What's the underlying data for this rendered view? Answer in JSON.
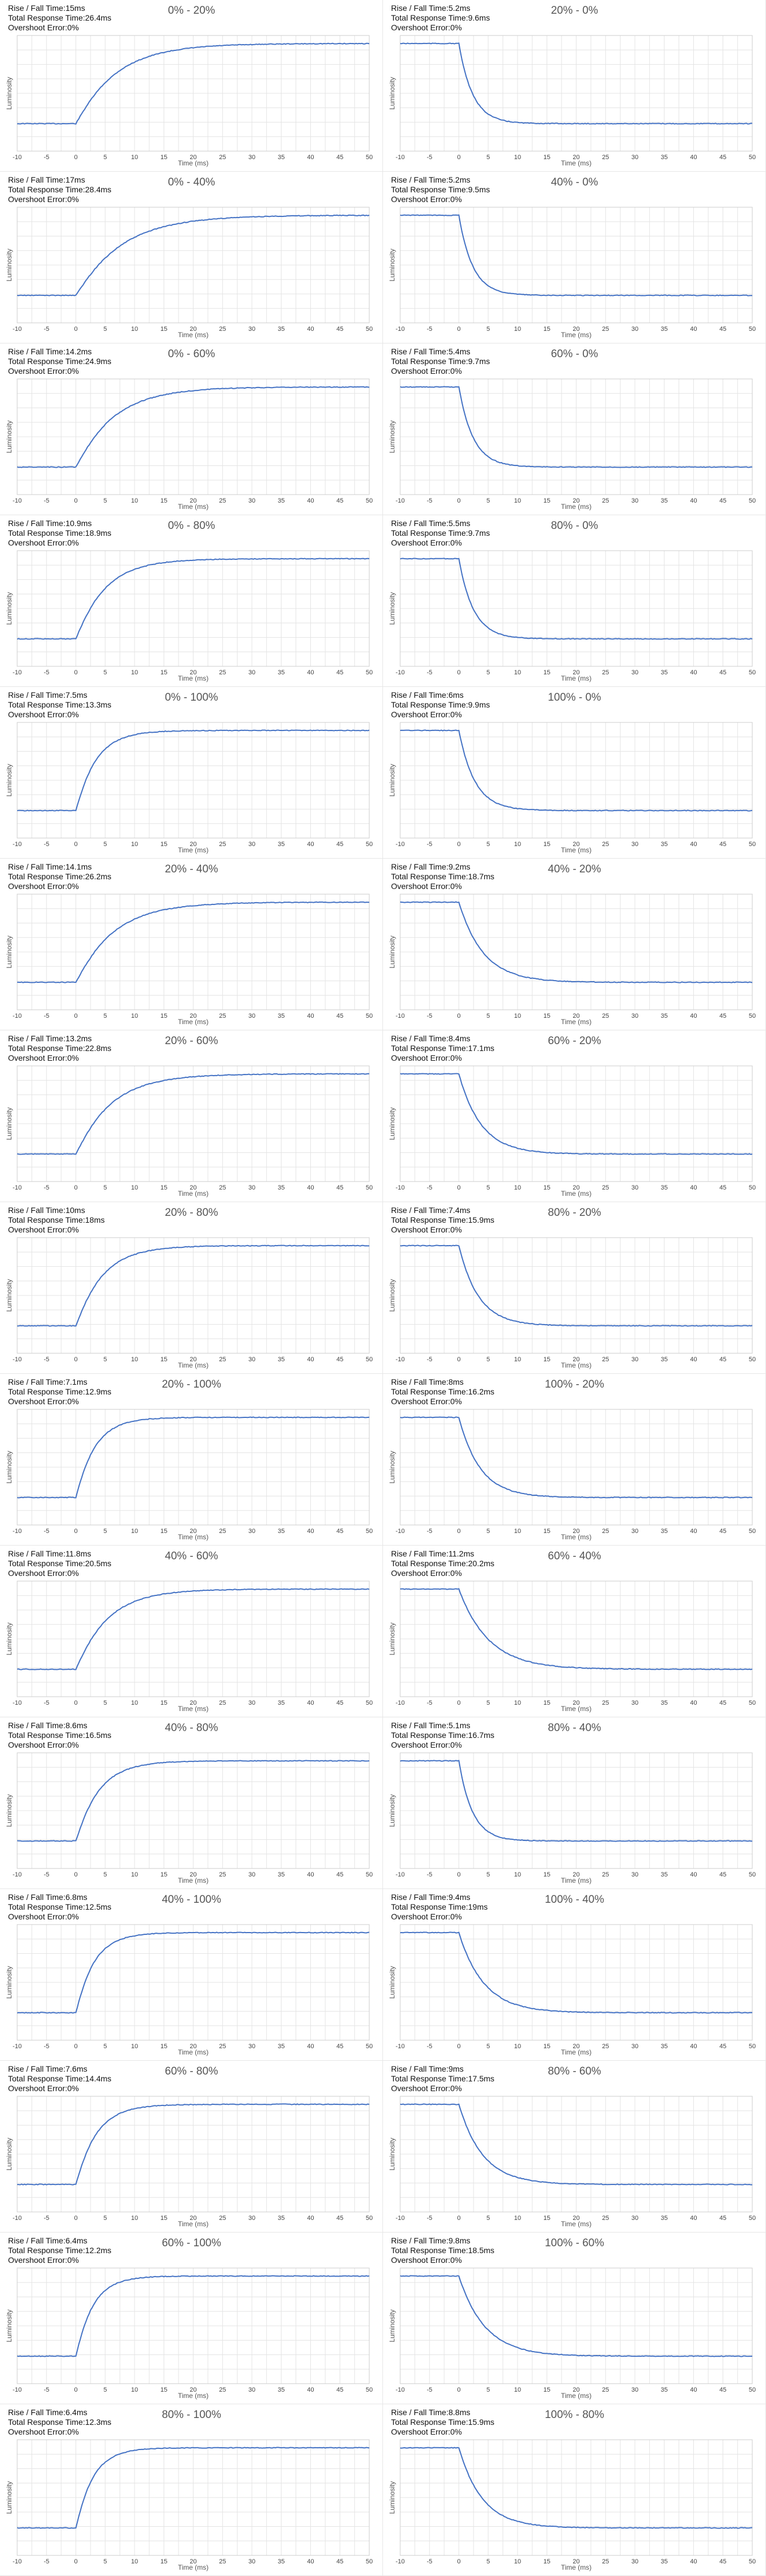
{
  "labels": {
    "rise_fall": "Rise / Fall Time:",
    "total": "Total Response Time:",
    "overshoot": "Overshoot Error:"
  },
  "chart_data": [
    {
      "type": "line",
      "title": "0% - 20%",
      "direction": "rise",
      "start": 0,
      "end": 20,
      "rise_fall": "15ms",
      "total": "26.4ms",
      "overshoot": "0%",
      "xlabel": "Time (ms)",
      "ylabel": "Luminosity",
      "xlim": [
        -10,
        50
      ],
      "xticks": [
        -10,
        -5,
        0,
        5,
        10,
        15,
        20,
        25,
        30,
        35,
        40,
        45,
        50
      ],
      "grid": true
    },
    {
      "type": "line",
      "title": "20% - 0%",
      "direction": "fall",
      "start": 20,
      "end": 0,
      "rise_fall": "5.2ms",
      "total": "9.6ms",
      "overshoot": "0%",
      "xlabel": "Time (ms)",
      "ylabel": "Luminosity",
      "xlim": [
        -10,
        50
      ],
      "xticks": [
        -10,
        -5,
        0,
        5,
        10,
        15,
        20,
        25,
        30,
        35,
        40,
        45,
        50
      ],
      "grid": true
    },
    {
      "type": "line",
      "title": "0% - 40%",
      "direction": "rise",
      "start": 0,
      "end": 40,
      "rise_fall": "17ms",
      "total": "28.4ms",
      "overshoot": "0%",
      "xlabel": "Time (ms)",
      "ylabel": "Luminosity",
      "xlim": [
        -10,
        50
      ],
      "xticks": [
        -10,
        -5,
        0,
        5,
        10,
        15,
        20,
        25,
        30,
        35,
        40,
        45,
        50
      ],
      "grid": true
    },
    {
      "type": "line",
      "title": "40% - 0%",
      "direction": "fall",
      "start": 40,
      "end": 0,
      "rise_fall": "5.2ms",
      "total": "9.5ms",
      "overshoot": "0%",
      "xlabel": "Time (ms)",
      "ylabel": "Luminosity",
      "xlim": [
        -10,
        50
      ],
      "xticks": [
        -10,
        -5,
        0,
        5,
        10,
        15,
        20,
        25,
        30,
        35,
        40,
        45,
        50
      ],
      "grid": true
    },
    {
      "type": "line",
      "title": "0% - 60%",
      "direction": "rise",
      "start": 0,
      "end": 60,
      "rise_fall": "14.2ms",
      "total": "24.9ms",
      "overshoot": "0%",
      "xlabel": "Time (ms)",
      "ylabel": "Luminosity",
      "xlim": [
        -10,
        50
      ],
      "xticks": [
        -10,
        -5,
        0,
        5,
        10,
        15,
        20,
        25,
        30,
        35,
        40,
        45,
        50
      ],
      "grid": true
    },
    {
      "type": "line",
      "title": "60% - 0%",
      "direction": "fall",
      "start": 60,
      "end": 0,
      "rise_fall": "5.4ms",
      "total": "9.7ms",
      "overshoot": "0%",
      "xlabel": "Time (ms)",
      "ylabel": "Luminosity",
      "xlim": [
        -10,
        50
      ],
      "xticks": [
        -10,
        -5,
        0,
        5,
        10,
        15,
        20,
        25,
        30,
        35,
        40,
        45,
        50
      ],
      "grid": true
    },
    {
      "type": "line",
      "title": "0% - 80%",
      "direction": "rise",
      "start": 0,
      "end": 80,
      "rise_fall": "10.9ms",
      "total": "18.9ms",
      "overshoot": "0%",
      "xlabel": "Time (ms)",
      "ylabel": "Luminosity",
      "xlim": [
        -10,
        50
      ],
      "xticks": [
        -10,
        -5,
        0,
        5,
        10,
        15,
        20,
        25,
        30,
        35,
        40,
        45,
        50
      ],
      "grid": true
    },
    {
      "type": "line",
      "title": "80% - 0%",
      "direction": "fall",
      "start": 80,
      "end": 0,
      "rise_fall": "5.5ms",
      "total": "9.7ms",
      "overshoot": "0%",
      "xlabel": "Time (ms)",
      "ylabel": "Luminosity",
      "xlim": [
        -10,
        50
      ],
      "xticks": [
        -10,
        -5,
        0,
        5,
        10,
        15,
        20,
        25,
        30,
        35,
        40,
        45,
        50
      ],
      "grid": true
    },
    {
      "type": "line",
      "title": "0% - 100%",
      "direction": "rise",
      "start": 0,
      "end": 100,
      "rise_fall": "7.5ms",
      "total": "13.3ms",
      "overshoot": "0%",
      "xlabel": "Time (ms)",
      "ylabel": "Luminosity",
      "xlim": [
        -10,
        50
      ],
      "xticks": [
        -10,
        -5,
        0,
        5,
        10,
        15,
        20,
        25,
        30,
        35,
        40,
        45,
        50
      ],
      "grid": true
    },
    {
      "type": "line",
      "title": "100% - 0%",
      "direction": "fall",
      "start": 100,
      "end": 0,
      "rise_fall": "6ms",
      "total": "9.9ms",
      "overshoot": "0%",
      "xlabel": "Time (ms)",
      "ylabel": "Luminosity",
      "xlim": [
        -10,
        50
      ],
      "xticks": [
        -10,
        -5,
        0,
        5,
        10,
        15,
        20,
        25,
        30,
        35,
        40,
        45,
        50
      ],
      "grid": true
    },
    {
      "type": "line",
      "title": "20% - 40%",
      "direction": "rise",
      "start": 20,
      "end": 40,
      "rise_fall": "14.1ms",
      "total": "26.2ms",
      "overshoot": "0%",
      "xlabel": "Time (ms)",
      "ylabel": "Luminosity",
      "xlim": [
        -10,
        50
      ],
      "xticks": [
        -10,
        -5,
        0,
        5,
        10,
        15,
        20,
        25,
        30,
        35,
        40,
        45,
        50
      ],
      "grid": true
    },
    {
      "type": "line",
      "title": "40% - 20%",
      "direction": "fall",
      "start": 40,
      "end": 20,
      "rise_fall": "9.2ms",
      "total": "18.7ms",
      "overshoot": "0%",
      "xlabel": "Time (ms)",
      "ylabel": "Luminosity",
      "xlim": [
        -10,
        50
      ],
      "xticks": [
        -10,
        -5,
        0,
        5,
        10,
        15,
        20,
        25,
        30,
        35,
        40,
        45,
        50
      ],
      "grid": true
    },
    {
      "type": "line",
      "title": "20% - 60%",
      "direction": "rise",
      "start": 20,
      "end": 60,
      "rise_fall": "13.2ms",
      "total": "22.8ms",
      "overshoot": "0%",
      "xlabel": "Time (ms)",
      "ylabel": "Luminosity",
      "xlim": [
        -10,
        50
      ],
      "xticks": [
        -10,
        -5,
        0,
        5,
        10,
        15,
        20,
        25,
        30,
        35,
        40,
        45,
        50
      ],
      "grid": true
    },
    {
      "type": "line",
      "title": "60% - 20%",
      "direction": "fall",
      "start": 60,
      "end": 20,
      "rise_fall": "8.4ms",
      "total": "17.1ms",
      "overshoot": "0%",
      "xlabel": "Time (ms)",
      "ylabel": "Luminosity",
      "xlim": [
        -10,
        50
      ],
      "xticks": [
        -10,
        -5,
        0,
        5,
        10,
        15,
        20,
        25,
        30,
        35,
        40,
        45,
        50
      ],
      "grid": true
    },
    {
      "type": "line",
      "title": "20% - 80%",
      "direction": "rise",
      "start": 20,
      "end": 80,
      "rise_fall": "10ms",
      "total": "18ms",
      "overshoot": "0%",
      "xlabel": "Time (ms)",
      "ylabel": "Luminosity",
      "xlim": [
        -10,
        50
      ],
      "xticks": [
        -10,
        -5,
        0,
        5,
        10,
        15,
        20,
        25,
        30,
        35,
        40,
        45,
        50
      ],
      "grid": true
    },
    {
      "type": "line",
      "title": "80% - 20%",
      "direction": "fall",
      "start": 80,
      "end": 20,
      "rise_fall": "7.4ms",
      "total": "15.9ms",
      "overshoot": "0%",
      "xlabel": "Time (ms)",
      "ylabel": "Luminosity",
      "xlim": [
        -10,
        50
      ],
      "xticks": [
        -10,
        -5,
        0,
        5,
        10,
        15,
        20,
        25,
        30,
        35,
        40,
        45,
        50
      ],
      "grid": true
    },
    {
      "type": "line",
      "title": "20% - 100%",
      "direction": "rise",
      "start": 20,
      "end": 100,
      "rise_fall": "7.1ms",
      "total": "12.9ms",
      "overshoot": "0%",
      "xlabel": "Time (ms)",
      "ylabel": "Luminosity",
      "xlim": [
        -10,
        50
      ],
      "xticks": [
        -10,
        -5,
        0,
        5,
        10,
        15,
        20,
        25,
        30,
        35,
        40,
        45,
        50
      ],
      "grid": true
    },
    {
      "type": "line",
      "title": "100% - 20%",
      "direction": "fall",
      "start": 100,
      "end": 20,
      "rise_fall": "8ms",
      "total": "16.2ms",
      "overshoot": "0%",
      "xlabel": "Time (ms)",
      "ylabel": "Luminosity",
      "xlim": [
        -10,
        50
      ],
      "xticks": [
        -10,
        -5,
        0,
        5,
        10,
        15,
        20,
        25,
        30,
        35,
        40,
        45,
        50
      ],
      "grid": true
    },
    {
      "type": "line",
      "title": "40% - 60%",
      "direction": "rise",
      "start": 40,
      "end": 60,
      "rise_fall": "11.8ms",
      "total": "20.5ms",
      "overshoot": "0%",
      "xlabel": "Time (ms)",
      "ylabel": "Luminosity",
      "xlim": [
        -10,
        50
      ],
      "xticks": [
        -10,
        -5,
        0,
        5,
        10,
        15,
        20,
        25,
        30,
        35,
        40,
        45,
        50
      ],
      "grid": true
    },
    {
      "type": "line",
      "title": "60% - 40%",
      "direction": "fall",
      "start": 60,
      "end": 40,
      "rise_fall": "11.2ms",
      "total": "20.2ms",
      "overshoot": "0%",
      "xlabel": "Time (ms)",
      "ylabel": "Luminosity",
      "xlim": [
        -10,
        50
      ],
      "xticks": [
        -10,
        -5,
        0,
        5,
        10,
        15,
        20,
        25,
        30,
        35,
        40,
        45,
        50
      ],
      "grid": true
    },
    {
      "type": "line",
      "title": "40% - 80%",
      "direction": "rise",
      "start": 40,
      "end": 80,
      "rise_fall": "8.6ms",
      "total": "16.5ms",
      "overshoot": "0%",
      "xlabel": "Time (ms)",
      "ylabel": "Luminosity",
      "xlim": [
        -10,
        50
      ],
      "xticks": [
        -10,
        -5,
        0,
        5,
        10,
        15,
        20,
        25,
        30,
        35,
        40,
        45,
        50
      ],
      "grid": true
    },
    {
      "type": "line",
      "title": "80% - 40%",
      "direction": "fall",
      "start": 80,
      "end": 40,
      "rise_fall": "5.1ms",
      "total": "16.7ms",
      "overshoot": "0%",
      "xlabel": "Time (ms)",
      "ylabel": "Luminosity",
      "xlim": [
        -10,
        50
      ],
      "xticks": [
        -10,
        -5,
        0,
        5,
        10,
        15,
        20,
        25,
        30,
        35,
        40,
        45,
        50
      ],
      "grid": true
    },
    {
      "type": "line",
      "title": "40% - 100%",
      "direction": "rise",
      "start": 40,
      "end": 100,
      "rise_fall": "6.8ms",
      "total": "12.5ms",
      "overshoot": "0%",
      "xlabel": "Time (ms)",
      "ylabel": "Luminosity",
      "xlim": [
        -10,
        50
      ],
      "xticks": [
        -10,
        -5,
        0,
        5,
        10,
        15,
        20,
        25,
        30,
        35,
        40,
        45,
        50
      ],
      "grid": true
    },
    {
      "type": "line",
      "title": "100% - 40%",
      "direction": "fall",
      "start": 100,
      "end": 40,
      "rise_fall": "9.4ms",
      "total": "19ms",
      "overshoot": "0%",
      "xlabel": "Time (ms)",
      "ylabel": "Luminosity",
      "xlim": [
        -10,
        50
      ],
      "xticks": [
        -10,
        -5,
        0,
        5,
        10,
        15,
        20,
        25,
        30,
        35,
        40,
        45,
        50
      ],
      "grid": true
    },
    {
      "type": "line",
      "title": "60% - 80%",
      "direction": "rise",
      "start": 60,
      "end": 80,
      "rise_fall": "7.6ms",
      "total": "14.4ms",
      "overshoot": "0%",
      "xlabel": "Time (ms)",
      "ylabel": "Luminosity",
      "xlim": [
        -10,
        50
      ],
      "xticks": [
        -10,
        -5,
        0,
        5,
        10,
        15,
        20,
        25,
        30,
        35,
        40,
        45,
        50
      ],
      "grid": true
    },
    {
      "type": "line",
      "title": "80% - 60%",
      "direction": "fall",
      "start": 80,
      "end": 60,
      "rise_fall": "9ms",
      "total": "17.5ms",
      "overshoot": "0%",
      "xlabel": "Time (ms)",
      "ylabel": "Luminosity",
      "xlim": [
        -10,
        50
      ],
      "xticks": [
        -10,
        -5,
        0,
        5,
        10,
        15,
        20,
        25,
        30,
        35,
        40,
        45,
        50
      ],
      "grid": true
    },
    {
      "type": "line",
      "title": "60% - 100%",
      "direction": "rise",
      "start": 60,
      "end": 100,
      "rise_fall": "6.4ms",
      "total": "12.2ms",
      "overshoot": "0%",
      "xlabel": "Time (ms)",
      "ylabel": "Luminosity",
      "xlim": [
        -10,
        50
      ],
      "xticks": [
        -10,
        -5,
        0,
        5,
        10,
        15,
        20,
        25,
        30,
        35,
        40,
        45,
        50
      ],
      "grid": true
    },
    {
      "type": "line",
      "title": "100% - 60%",
      "direction": "fall",
      "start": 100,
      "end": 60,
      "rise_fall": "9.8ms",
      "total": "18.5ms",
      "overshoot": "0%",
      "xlabel": "Time (ms)",
      "ylabel": "Luminosity",
      "xlim": [
        -10,
        50
      ],
      "xticks": [
        -10,
        -5,
        0,
        5,
        10,
        15,
        20,
        25,
        30,
        35,
        40,
        45,
        50
      ],
      "grid": true
    },
    {
      "type": "line",
      "title": "80% - 100%",
      "direction": "rise",
      "start": 80,
      "end": 100,
      "rise_fall": "6.4ms",
      "total": "12.3ms",
      "overshoot": "0%",
      "xlabel": "Time (ms)",
      "ylabel": "Luminosity",
      "xlim": [
        -10,
        50
      ],
      "xticks": [
        -10,
        -5,
        0,
        5,
        10,
        15,
        20,
        25,
        30,
        35,
        40,
        45,
        50
      ],
      "grid": true
    },
    {
      "type": "line",
      "title": "100% - 80%",
      "direction": "fall",
      "start": 100,
      "end": 80,
      "rise_fall": "8.8ms",
      "total": "15.9ms",
      "overshoot": "0%",
      "xlabel": "Time (ms)",
      "ylabel": "Luminosity",
      "xlim": [
        -10,
        50
      ],
      "xticks": [
        -10,
        -5,
        0,
        5,
        10,
        15,
        20,
        25,
        30,
        35,
        40,
        45,
        50
      ],
      "grid": true
    }
  ],
  "colors": {
    "line": "#4472c4",
    "grid": "#e4e4e4",
    "axis": "#cccccc"
  }
}
